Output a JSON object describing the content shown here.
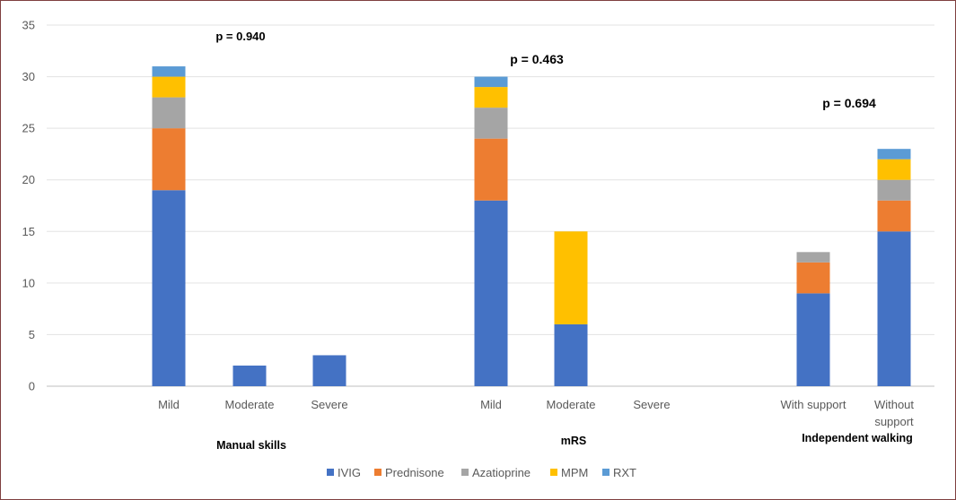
{
  "chart_data": {
    "type": "bar",
    "stacked": true,
    "title": "",
    "xlabel": "",
    "ylabel": "",
    "ylim": [
      0,
      35
    ],
    "yticks": [
      0,
      5,
      10,
      15,
      20,
      25,
      30,
      35
    ],
    "grid": true,
    "legend_position": "bottom",
    "categories": [
      "Mild",
      "Moderate",
      "Severe",
      "Mild",
      "Moderate",
      "Severe",
      "With support",
      "Without support"
    ],
    "groups": [
      {
        "name": "Manual skills",
        "categories": [
          0,
          1,
          2
        ],
        "p_value": "p = 0.940"
      },
      {
        "name": "mRS",
        "categories": [
          3,
          4,
          5
        ],
        "p_value": "p = 0.463"
      },
      {
        "name": "Independent walking",
        "categories": [
          6,
          7
        ],
        "p_value": "p = 0.694"
      }
    ],
    "series": [
      {
        "name": "IVIG",
        "color": "#4472c4",
        "values": [
          19,
          2,
          3,
          18,
          6,
          0,
          9,
          15
        ]
      },
      {
        "name": "Prednisone",
        "color": "#ed7d31",
        "values": [
          6,
          0,
          0,
          6,
          0,
          0,
          3,
          3
        ]
      },
      {
        "name": "Azatioprine",
        "color": "#a5a5a5",
        "values": [
          3,
          0,
          0,
          3,
          0,
          0,
          1,
          2
        ]
      },
      {
        "name": "MPM",
        "color": "#ffc000",
        "values": [
          2,
          0,
          0,
          2,
          9,
          0,
          0,
          2
        ]
      },
      {
        "name": "RXT",
        "color": "#5b9bd5",
        "values": [
          1,
          0,
          0,
          1,
          0,
          0,
          0,
          1
        ]
      }
    ]
  }
}
